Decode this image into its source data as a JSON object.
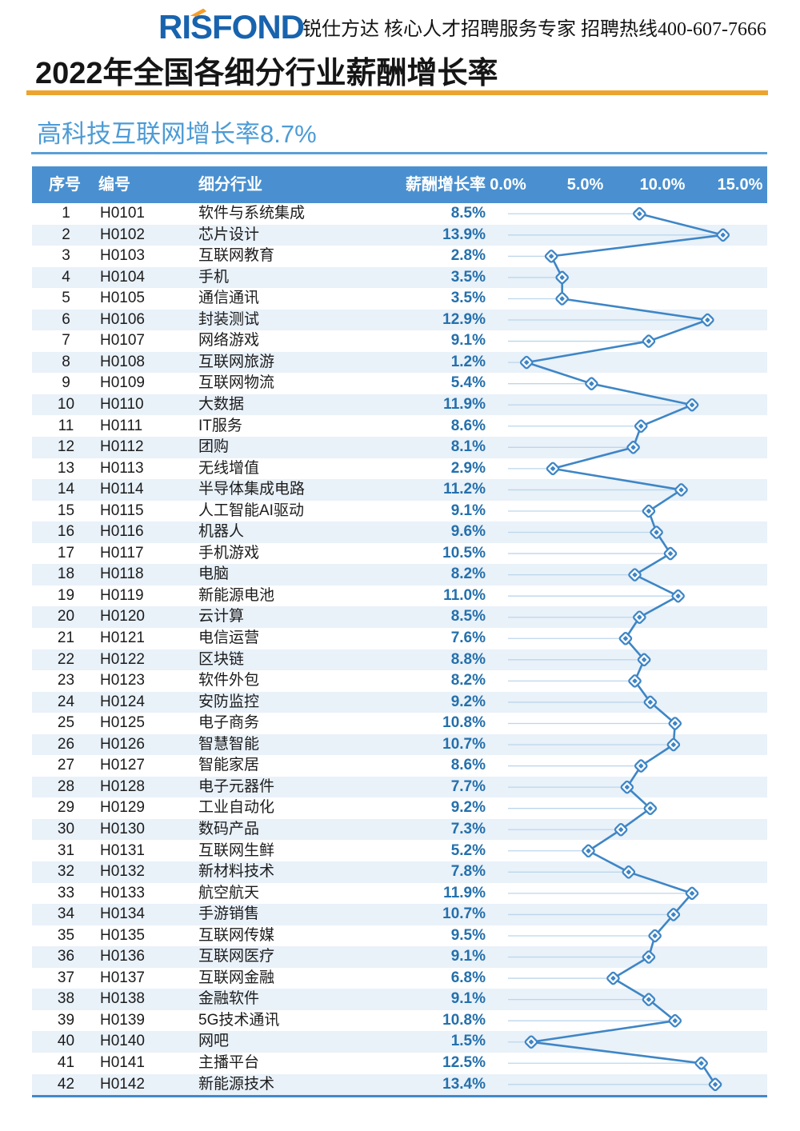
{
  "brand": {
    "logo_text": "RISFOND",
    "tagline": "锐仕方达 核心人才招聘服务专家 招聘热线400-607-7666"
  },
  "title": "2022年全国各细分行业薪酬增长率",
  "subtitle": "高科技互联网增长率8.7%",
  "colors": {
    "brand_blue": "#1863AE",
    "accent_orange": "#F59E2B",
    "gold_rule": "#ECA42F",
    "subtitle_blue": "#4D9BD5",
    "table_header_bg": "#4A90D0",
    "row_stripe": "#E9F1F9",
    "rate_text": "#2470AC",
    "chart_line": "#3E86C6",
    "leader_line": "#BCD6EC"
  },
  "table": {
    "columns": [
      "序号",
      "编号",
      "细分行业",
      "薪酬增长率"
    ],
    "axis_ticks": [
      "0.0%",
      "5.0%",
      "10.0%",
      "15.0%"
    ],
    "rows": [
      {
        "no": "1",
        "code": "H0101",
        "industry": "软件与系统集成",
        "rate": "8.5%"
      },
      {
        "no": "2",
        "code": "H0102",
        "industry": "芯片设计",
        "rate": "13.9%"
      },
      {
        "no": "3",
        "code": "H0103",
        "industry": "互联网教育",
        "rate": "2.8%"
      },
      {
        "no": "4",
        "code": "H0104",
        "industry": "手机",
        "rate": "3.5%"
      },
      {
        "no": "5",
        "code": "H0105",
        "industry": "通信通讯",
        "rate": "3.5%"
      },
      {
        "no": "6",
        "code": "H0106",
        "industry": "封装测试",
        "rate": "12.9%"
      },
      {
        "no": "7",
        "code": "H0107",
        "industry": "网络游戏",
        "rate": "9.1%"
      },
      {
        "no": "8",
        "code": "H0108",
        "industry": "互联网旅游",
        "rate": "1.2%"
      },
      {
        "no": "9",
        "code": "H0109",
        "industry": "互联网物流",
        "rate": "5.4%"
      },
      {
        "no": "10",
        "code": "H0110",
        "industry": "大数据",
        "rate": "11.9%"
      },
      {
        "no": "11",
        "code": "H0111",
        "industry": "IT服务",
        "rate": "8.6%"
      },
      {
        "no": "12",
        "code": "H0112",
        "industry": "团购",
        "rate": "8.1%"
      },
      {
        "no": "13",
        "code": "H0113",
        "industry": "无线增值",
        "rate": "2.9%"
      },
      {
        "no": "14",
        "code": "H0114",
        "industry": "半导体集成电路",
        "rate": "11.2%"
      },
      {
        "no": "15",
        "code": "H0115",
        "industry": "人工智能AI驱动",
        "rate": "9.1%"
      },
      {
        "no": "16",
        "code": "H0116",
        "industry": "机器人",
        "rate": "9.6%"
      },
      {
        "no": "17",
        "code": "H0117",
        "industry": "手机游戏",
        "rate": "10.5%"
      },
      {
        "no": "18",
        "code": "H0118",
        "industry": "电脑",
        "rate": "8.2%"
      },
      {
        "no": "19",
        "code": "H0119",
        "industry": "新能源电池",
        "rate": "11.0%"
      },
      {
        "no": "20",
        "code": "H0120",
        "industry": "云计算",
        "rate": "8.5%"
      },
      {
        "no": "21",
        "code": "H0121",
        "industry": "电信运营",
        "rate": "7.6%"
      },
      {
        "no": "22",
        "code": "H0122",
        "industry": "区块链",
        "rate": "8.8%"
      },
      {
        "no": "23",
        "code": "H0123",
        "industry": "软件外包",
        "rate": "8.2%"
      },
      {
        "no": "24",
        "code": "H0124",
        "industry": "安防监控",
        "rate": "9.2%"
      },
      {
        "no": "25",
        "code": "H0125",
        "industry": "电子商务",
        "rate": "10.8%"
      },
      {
        "no": "26",
        "code": "H0126",
        "industry": "智慧智能",
        "rate": "10.7%"
      },
      {
        "no": "27",
        "code": "H0127",
        "industry": "智能家居",
        "rate": "8.6%"
      },
      {
        "no": "28",
        "code": "H0128",
        "industry": "电子元器件",
        "rate": "7.7%"
      },
      {
        "no": "29",
        "code": "H0129",
        "industry": "工业自动化",
        "rate": "9.2%"
      },
      {
        "no": "30",
        "code": "H0130",
        "industry": "数码产品",
        "rate": "7.3%"
      },
      {
        "no": "31",
        "code": "H0131",
        "industry": "互联网生鲜",
        "rate": "5.2%"
      },
      {
        "no": "32",
        "code": "H0132",
        "industry": "新材料技术",
        "rate": "7.8%"
      },
      {
        "no": "33",
        "code": "H0133",
        "industry": "航空航天",
        "rate": "11.9%"
      },
      {
        "no": "34",
        "code": "H0134",
        "industry": "手游销售",
        "rate": "10.7%"
      },
      {
        "no": "35",
        "code": "H0135",
        "industry": "互联网传媒",
        "rate": "9.5%"
      },
      {
        "no": "36",
        "code": "H0136",
        "industry": "互联网医疗",
        "rate": "9.1%"
      },
      {
        "no": "37",
        "code": "H0137",
        "industry": "互联网金融",
        "rate": "6.8%"
      },
      {
        "no": "38",
        "code": "H0138",
        "industry": "金融软件",
        "rate": "9.1%"
      },
      {
        "no": "39",
        "code": "H0139",
        "industry": "5G技术通讯",
        "rate": "10.8%"
      },
      {
        "no": "40",
        "code": "H0140",
        "industry": "网吧",
        "rate": "1.5%"
      },
      {
        "no": "41",
        "code": "H0141",
        "industry": "主播平台",
        "rate": "12.5%"
      },
      {
        "no": "42",
        "code": "H0142",
        "industry": "新能源技术",
        "rate": "13.4%"
      }
    ]
  },
  "chart_data": {
    "type": "line",
    "title": "2022年全国各细分行业薪酬增长率 — 高科技互联网 (平均增长率 8.7%)",
    "xlabel": "薪酬增长率 (%)",
    "ylabel": "细分行业",
    "orientation": "value-on-x, categories-down-y",
    "xlim": [
      0,
      15
    ],
    "x_ticks": [
      0.0,
      5.0,
      10.0,
      15.0
    ],
    "x_tick_labels": [
      "0.0%",
      "5.0%",
      "10.0%",
      "15.0%"
    ],
    "grid": "per-row leader lines from 0 to marker",
    "legend": "none",
    "marker": "diamond",
    "categories": [
      "软件与系统集成",
      "芯片设计",
      "互联网教育",
      "手机",
      "通信通讯",
      "封装测试",
      "网络游戏",
      "互联网旅游",
      "互联网物流",
      "大数据",
      "IT服务",
      "团购",
      "无线增值",
      "半导体集成电路",
      "人工智能AI驱动",
      "机器人",
      "手机游戏",
      "电脑",
      "新能源电池",
      "云计算",
      "电信运营",
      "区块链",
      "软件外包",
      "安防监控",
      "电子商务",
      "智慧智能",
      "智能家居",
      "电子元器件",
      "工业自动化",
      "数码产品",
      "互联网生鲜",
      "新材料技术",
      "航空航天",
      "手游销售",
      "互联网传媒",
      "互联网医疗",
      "互联网金融",
      "金融软件",
      "5G技术通讯",
      "网吧",
      "主播平台",
      "新能源技术"
    ],
    "values": [
      8.5,
      13.9,
      2.8,
      3.5,
      3.5,
      12.9,
      9.1,
      1.2,
      5.4,
      11.9,
      8.6,
      8.1,
      2.9,
      11.2,
      9.1,
      9.6,
      10.5,
      8.2,
      11.0,
      8.5,
      7.6,
      8.8,
      8.2,
      9.2,
      10.8,
      10.7,
      8.6,
      7.7,
      9.2,
      7.3,
      5.2,
      7.8,
      11.9,
      10.7,
      9.5,
      9.1,
      6.8,
      9.1,
      10.8,
      1.5,
      12.5,
      13.4
    ]
  }
}
